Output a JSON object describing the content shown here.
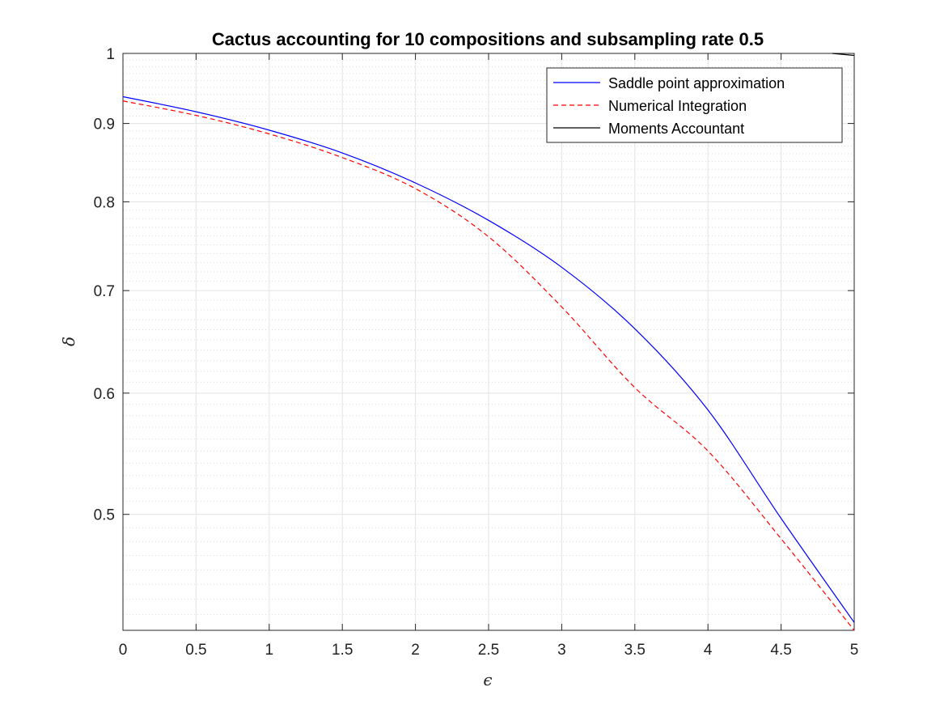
{
  "chart_data": {
    "type": "line",
    "title": "Cactus accounting for 10  compositions and subsampling rate 0.5",
    "xlabel": "ϵ",
    "ylabel": "δ",
    "xlim": [
      0,
      5
    ],
    "ylim": [
      0.42,
      1
    ],
    "yscale": "log",
    "grid": true,
    "minor_grid": true,
    "legend_position": "top-right",
    "x_ticks": [
      0,
      0.5,
      1,
      1.5,
      2,
      2.5,
      3,
      3.5,
      4,
      4.5,
      5
    ],
    "x_tick_labels": [
      "0",
      "0.5",
      "1",
      "1.5",
      "2",
      "2.5",
      "3",
      "3.5",
      "4",
      "4.5",
      "5"
    ],
    "y_ticks": [
      0.5,
      0.6,
      0.7,
      0.8,
      0.9,
      1
    ],
    "y_tick_labels": [
      "0.5",
      "0.6",
      "0.7",
      "0.8",
      "0.9",
      "1"
    ],
    "series": [
      {
        "name": "Saddle point approximation",
        "color": "#0000ff",
        "dash": "solid",
        "x": [
          0,
          0.5,
          1,
          1.5,
          2,
          2.5,
          3,
          3.5,
          4,
          4.5,
          5
        ],
        "y": [
          0.937,
          0.916,
          0.891,
          0.861,
          0.823,
          0.778,
          0.725,
          0.661,
          0.585,
          0.497,
          0.425
        ]
      },
      {
        "name": "Numerical Integration",
        "color": "#ff0000",
        "dash": "dashed",
        "x": [
          0,
          0.5,
          1,
          1.5,
          2,
          2.5,
          3,
          3.5,
          4,
          4.5,
          5
        ],
        "y": [
          0.931,
          0.911,
          0.886,
          0.855,
          0.816,
          0.759,
          0.683,
          0.605,
          0.55,
          0.482,
          0.42
        ]
      },
      {
        "name": "Moments Accountant",
        "color": "#000000",
        "dash": "solid",
        "x": [
          4.85,
          5
        ],
        "y": [
          1,
          0.997
        ]
      }
    ]
  }
}
